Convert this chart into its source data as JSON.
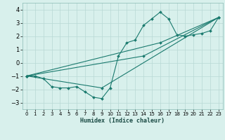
{
  "xlabel": "Humidex (Indice chaleur)",
  "xlim": [
    -0.5,
    23.5
  ],
  "ylim": [
    -3.5,
    4.5
  ],
  "yticks": [
    -3,
    -2,
    -1,
    0,
    1,
    2,
    3,
    4
  ],
  "xticks": [
    0,
    1,
    2,
    3,
    4,
    5,
    6,
    7,
    8,
    9,
    10,
    11,
    12,
    13,
    14,
    15,
    16,
    17,
    18,
    19,
    20,
    21,
    22,
    23
  ],
  "bg_color": "#d8f0ec",
  "grid_color": "#b8d8d4",
  "line_color": "#1a7a6e",
  "lines": [
    {
      "x": [
        0,
        1,
        2,
        3,
        4,
        5,
        6,
        7,
        8,
        9,
        10,
        11,
        12,
        13,
        14,
        15,
        16,
        17,
        18,
        19,
        20,
        21,
        22,
        23
      ],
      "y": [
        -1.0,
        -1.0,
        -1.2,
        -1.8,
        -1.9,
        -1.9,
        -1.8,
        -2.2,
        -2.6,
        -2.7,
        -1.9,
        0.5,
        1.5,
        1.7,
        2.8,
        3.3,
        3.8,
        3.3,
        2.1,
        2.0,
        2.1,
        2.2,
        2.4,
        3.4
      ],
      "with_markers": true
    },
    {
      "x": [
        0,
        9,
        23
      ],
      "y": [
        -1.0,
        -1.9,
        3.4
      ],
      "with_markers": true
    },
    {
      "x": [
        0,
        14,
        23
      ],
      "y": [
        -1.0,
        0.5,
        3.4
      ],
      "with_markers": true
    },
    {
      "x": [
        0,
        16,
        23
      ],
      "y": [
        -1.0,
        1.5,
        3.4
      ],
      "with_markers": true
    }
  ]
}
